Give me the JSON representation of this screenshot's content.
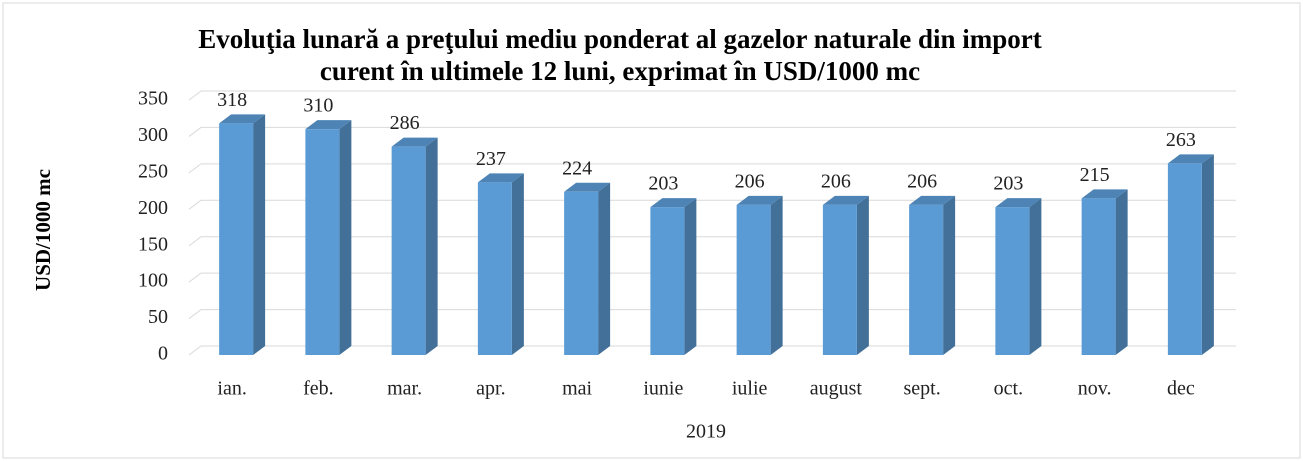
{
  "chart_data": {
    "type": "bar3d",
    "title": "Evoluţia lunară a preţului mediu ponderat al gazelor naturale din import curent în ultimele 12 luni, exprimat în USD/1000 mc",
    "title_lines": [
      "Evoluţia lunară a preţului mediu ponderat al gazelor naturale din import",
      "curent în ultimele 12 luni, exprimat în USD/1000 mc"
    ],
    "x_label": "2019",
    "y_label": "USD/1000 mc",
    "categories": [
      "ian.",
      "feb.",
      "mar.",
      "apr.",
      "mai",
      "iunie",
      "iulie",
      "august",
      "sept.",
      "oct.",
      "nov.",
      "dec"
    ],
    "values": [
      318,
      310,
      286,
      237,
      224,
      203,
      206,
      206,
      206,
      203,
      215,
      263
    ],
    "color": "#5b9bd5",
    "ylim": [
      0,
      350
    ],
    "yticks": [
      0,
      50,
      100,
      150,
      200,
      250,
      300,
      350
    ],
    "grid": true
  }
}
